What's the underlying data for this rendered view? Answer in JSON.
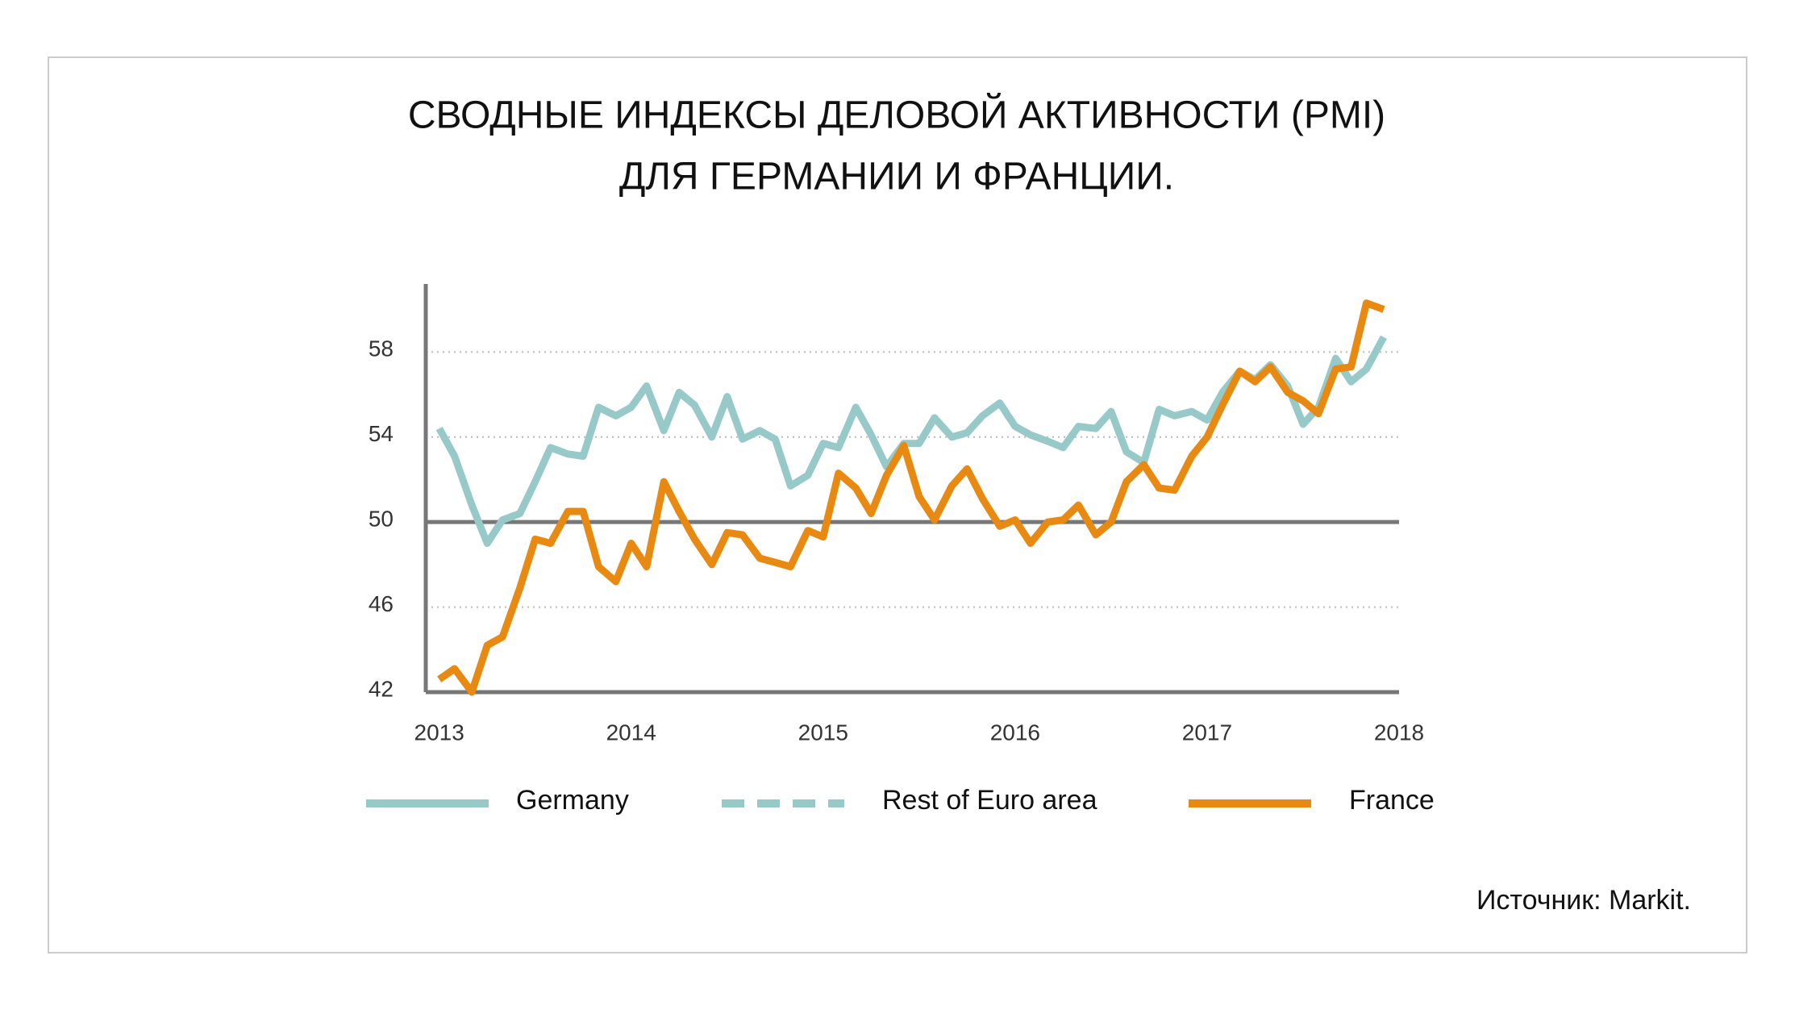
{
  "chart_data": {
    "type": "line",
    "title": [
      "СВОДНЫЕ ИНДЕКСЫ ДЕЛОВОЙ АКТИВНОСТИ (PMI)",
      "ДЛЯ ГЕРМАНИИ И ФРАНЦИИ."
    ],
    "source": "Источник: Markit.",
    "x": [
      2013,
      2013.08,
      2013.17,
      2013.25,
      2013.33,
      2013.42,
      2013.5,
      2013.58,
      2013.67,
      2013.75,
      2013.83,
      2013.92,
      2014,
      2014.08,
      2014.17,
      2014.25,
      2014.33,
      2014.42,
      2014.5,
      2014.58,
      2014.67,
      2014.75,
      2014.83,
      2014.92,
      2015,
      2015.08,
      2015.17,
      2015.25,
      2015.33,
      2015.42,
      2015.5,
      2015.58,
      2015.67,
      2015.75,
      2015.83,
      2015.92,
      2016,
      2016.08,
      2016.17,
      2016.25,
      2016.33,
      2016.42,
      2016.5,
      2016.58,
      2016.67,
      2016.75,
      2016.83,
      2016.92,
      2017,
      2017.08,
      2017.17,
      2017.25,
      2017.33,
      2017.42,
      2017.5,
      2017.58,
      2017.67,
      2017.75,
      2017.83,
      2017.92
    ],
    "series": [
      {
        "name": "Germany",
        "color": "#98c9c9",
        "dash": false,
        "values": [
          54.4,
          53.1,
          50.8,
          49.0,
          50.1,
          50.4,
          51.9,
          53.5,
          53.2,
          53.1,
          55.4,
          55.0,
          55.4,
          56.4,
          54.3,
          56.1,
          55.5,
          54.0,
          55.9,
          53.9,
          54.3,
          53.9,
          51.7,
          52.2,
          53.7,
          53.5,
          55.4,
          54.1,
          52.6,
          53.7,
          53.7,
          54.9,
          54.0,
          54.2,
          55.0,
          55.6,
          54.5,
          54.1,
          53.8,
          53.5,
          54.5,
          54.4,
          55.2,
          53.3,
          52.8,
          55.3,
          55.0,
          55.2,
          54.8,
          56.1,
          57.1,
          56.7,
          57.4,
          56.4,
          54.6,
          55.4,
          57.7,
          56.6,
          57.2,
          58.7
        ]
      },
      {
        "name": "Rest of Euro area",
        "color": "#98c9c9",
        "dash": true,
        "values": [
          null,
          null,
          null,
          null,
          null,
          null,
          null,
          null,
          null,
          null,
          null,
          null,
          null,
          null,
          null,
          null,
          null,
          null,
          null,
          null,
          null,
          null,
          null,
          null,
          null,
          null,
          null,
          null,
          null,
          null,
          null,
          null,
          null,
          null,
          null,
          null,
          null,
          null,
          null,
          null,
          null,
          null,
          null,
          null,
          null,
          null,
          null,
          null,
          null,
          null,
          null,
          null,
          null,
          null,
          null,
          null,
          null,
          null,
          null,
          null
        ]
      },
      {
        "name": "France",
        "color": "#e88a12",
        "dash": false,
        "values": [
          42.6,
          43.1,
          42.0,
          44.2,
          44.6,
          46.9,
          49.2,
          49.0,
          50.5,
          50.5,
          47.9,
          47.2,
          49.0,
          47.9,
          51.9,
          50.5,
          49.2,
          48.0,
          49.5,
          49.4,
          48.3,
          48.1,
          47.9,
          49.6,
          49.3,
          52.3,
          51.6,
          50.4,
          52.2,
          53.6,
          51.2,
          50.1,
          51.7,
          52.5,
          51.1,
          49.8,
          50.1,
          49.0,
          50.0,
          50.1,
          50.8,
          49.4,
          50.0,
          51.9,
          52.7,
          51.6,
          51.5,
          53.1,
          54.0,
          55.5,
          57.1,
          56.6,
          57.3,
          56.1,
          55.7,
          55.1,
          57.2,
          57.3,
          60.3,
          60.0
        ]
      }
    ],
    "xlim": [
      2012.93,
      2018
    ],
    "xticks": [
      2013,
      2014,
      2015,
      2016,
      2017,
      2018
    ],
    "ylim": [
      42,
      61.2
    ],
    "yticks": [
      42,
      46,
      50,
      54,
      58
    ],
    "hline": 50,
    "grid": true,
    "legend": "bottom"
  }
}
